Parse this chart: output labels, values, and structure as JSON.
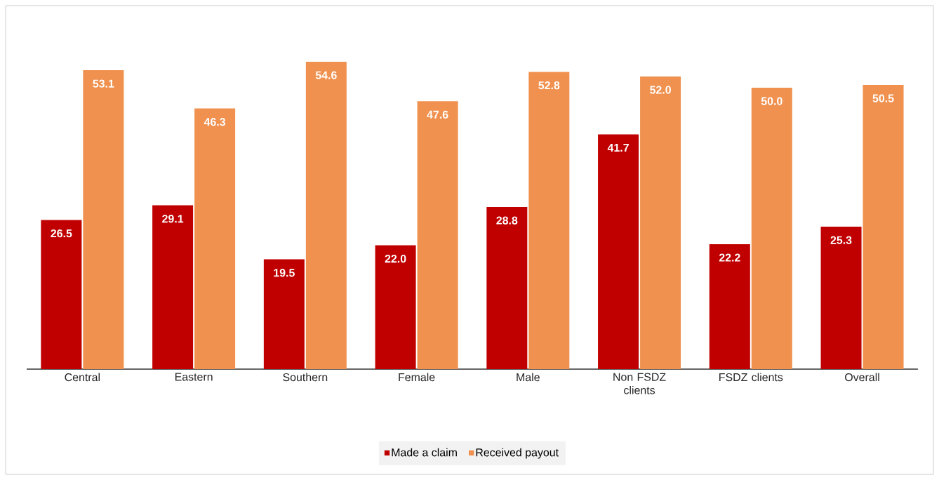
{
  "chart_data": {
    "type": "bar",
    "categories": [
      "Central",
      "Eastern",
      "Southern",
      "Female",
      "Male",
      "Non FSDZ clients",
      "FSDZ clients",
      "Overall"
    ],
    "series": [
      {
        "name": "Made a claim",
        "color": "#c00000",
        "values": [
          26.5,
          29.1,
          19.5,
          22.0,
          28.8,
          41.7,
          22.2,
          25.3
        ],
        "value_labels": [
          "26.5",
          "29.1",
          "19.5",
          "22.0",
          "28.8",
          "41.7",
          "22.2",
          "25.3"
        ]
      },
      {
        "name": "Received payout",
        "color": "#f0914f",
        "values": [
          53.1,
          46.3,
          54.6,
          47.6,
          52.8,
          52.0,
          50.0,
          50.5
        ],
        "value_labels": [
          "53.1",
          "46.3",
          "54.6",
          "47.6",
          "52.8",
          "52.0",
          "50.0",
          "50.5"
        ]
      }
    ],
    "legend": "bottom"
  }
}
